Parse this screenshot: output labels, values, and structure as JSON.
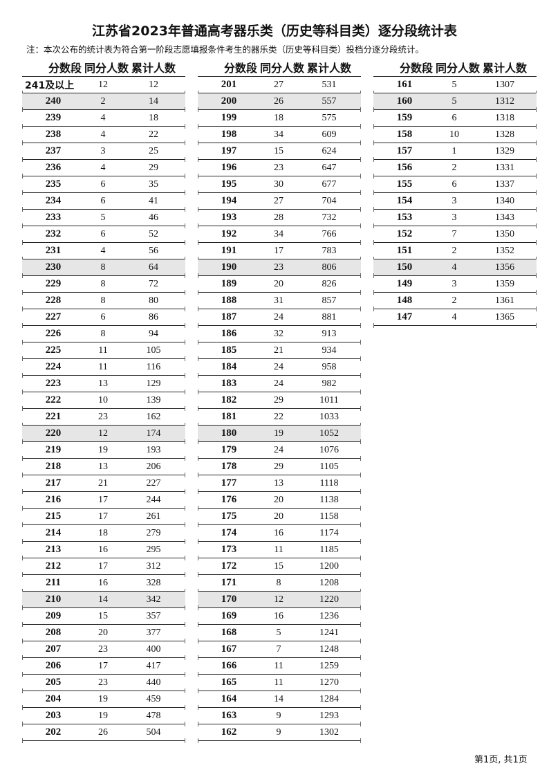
{
  "title": "江苏省2023年普通高考器乐类（历史等科目类）逐分段统计表",
  "note": "注：本次公布的统计表为符合第一阶段志愿填报条件考生的器乐类（历史等科目类）投档分逐分段统计。",
  "headers": [
    "分数段",
    "同分人数",
    "累计人数"
  ],
  "shade_color": "#e6e6e6",
  "columns": [
    [
      [
        "241及以上",
        12,
        12
      ],
      [
        "240",
        2,
        14
      ],
      [
        "239",
        4,
        18
      ],
      [
        "238",
        4,
        22
      ],
      [
        "237",
        3,
        25
      ],
      [
        "236",
        4,
        29
      ],
      [
        "235",
        6,
        35
      ],
      [
        "234",
        6,
        41
      ],
      [
        "233",
        5,
        46
      ],
      [
        "232",
        6,
        52
      ],
      [
        "231",
        4,
        56
      ],
      [
        "230",
        8,
        64
      ],
      [
        "229",
        8,
        72
      ],
      [
        "228",
        8,
        80
      ],
      [
        "227",
        6,
        86
      ],
      [
        "226",
        8,
        94
      ],
      [
        "225",
        11,
        105
      ],
      [
        "224",
        11,
        116
      ],
      [
        "223",
        13,
        129
      ],
      [
        "222",
        10,
        139
      ],
      [
        "221",
        23,
        162
      ],
      [
        "220",
        12,
        174
      ],
      [
        "219",
        19,
        193
      ],
      [
        "218",
        13,
        206
      ],
      [
        "217",
        21,
        227
      ],
      [
        "216",
        17,
        244
      ],
      [
        "215",
        17,
        261
      ],
      [
        "214",
        18,
        279
      ],
      [
        "213",
        16,
        295
      ],
      [
        "212",
        17,
        312
      ],
      [
        "211",
        16,
        328
      ],
      [
        "210",
        14,
        342
      ],
      [
        "209",
        15,
        357
      ],
      [
        "208",
        20,
        377
      ],
      [
        "207",
        23,
        400
      ],
      [
        "206",
        17,
        417
      ],
      [
        "205",
        23,
        440
      ],
      [
        "204",
        19,
        459
      ],
      [
        "203",
        19,
        478
      ],
      [
        "202",
        26,
        504
      ]
    ],
    [
      [
        "201",
        27,
        531
      ],
      [
        "200",
        26,
        557
      ],
      [
        "199",
        18,
        575
      ],
      [
        "198",
        34,
        609
      ],
      [
        "197",
        15,
        624
      ],
      [
        "196",
        23,
        647
      ],
      [
        "195",
        30,
        677
      ],
      [
        "194",
        27,
        704
      ],
      [
        "193",
        28,
        732
      ],
      [
        "192",
        34,
        766
      ],
      [
        "191",
        17,
        783
      ],
      [
        "190",
        23,
        806
      ],
      [
        "189",
        20,
        826
      ],
      [
        "188",
        31,
        857
      ],
      [
        "187",
        24,
        881
      ],
      [
        "186",
        32,
        913
      ],
      [
        "185",
        21,
        934
      ],
      [
        "184",
        24,
        958
      ],
      [
        "183",
        24,
        982
      ],
      [
        "182",
        29,
        1011
      ],
      [
        "181",
        22,
        1033
      ],
      [
        "180",
        19,
        1052
      ],
      [
        "179",
        24,
        1076
      ],
      [
        "178",
        29,
        1105
      ],
      [
        "177",
        13,
        1118
      ],
      [
        "176",
        20,
        1138
      ],
      [
        "175",
        20,
        1158
      ],
      [
        "174",
        16,
        1174
      ],
      [
        "173",
        11,
        1185
      ],
      [
        "172",
        15,
        1200
      ],
      [
        "171",
        8,
        1208
      ],
      [
        "170",
        12,
        1220
      ],
      [
        "169",
        16,
        1236
      ],
      [
        "168",
        5,
        1241
      ],
      [
        "167",
        7,
        1248
      ],
      [
        "166",
        11,
        1259
      ],
      [
        "165",
        11,
        1270
      ],
      [
        "164",
        14,
        1284
      ],
      [
        "163",
        9,
        1293
      ],
      [
        "162",
        9,
        1302
      ]
    ],
    [
      [
        "161",
        5,
        1307
      ],
      [
        "160",
        5,
        1312
      ],
      [
        "159",
        6,
        1318
      ],
      [
        "158",
        10,
        1328
      ],
      [
        "157",
        1,
        1329
      ],
      [
        "156",
        2,
        1331
      ],
      [
        "155",
        6,
        1337
      ],
      [
        "154",
        3,
        1340
      ],
      [
        "153",
        3,
        1343
      ],
      [
        "152",
        7,
        1350
      ],
      [
        "151",
        2,
        1352
      ],
      [
        "150",
        4,
        1356
      ],
      [
        "149",
        3,
        1359
      ],
      [
        "148",
        2,
        1361
      ],
      [
        "147",
        4,
        1365
      ]
    ]
  ],
  "footer": "第1页, 共1页"
}
